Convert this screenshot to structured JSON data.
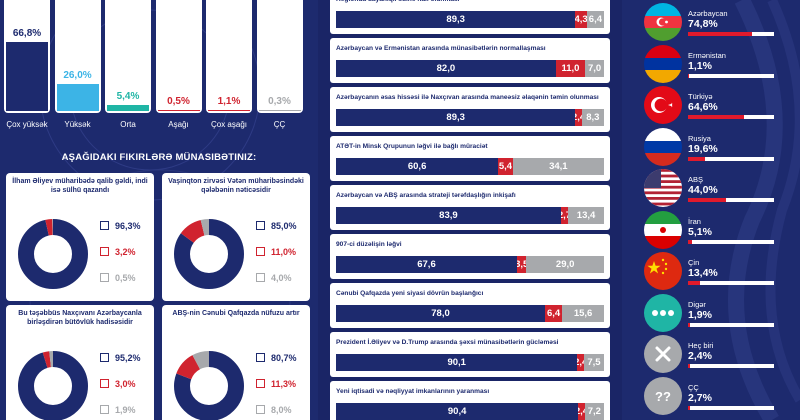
{
  "colors": {
    "navy": "#1d2a6e",
    "cyan": "#3cb4e6",
    "teal": "#1fb5a5",
    "red": "#d0232f",
    "gray": "#a7a9ac",
    "bar": "#e11a2c"
  },
  "chart_data": [
    {
      "type": "bar",
      "categories": [
        "Çox yüksək",
        "Yüksək",
        "Orta",
        "Aşağı",
        "Çox aşağı",
        "ÇÇ"
      ],
      "values": [
        66.8,
        26.0,
        5.4,
        0.5,
        1.1,
        0.3
      ],
      "value_labels": [
        "66,8%",
        "26,0%",
        "5,4%",
        "0,5%",
        "1,1%",
        "0,3%"
      ],
      "ylim": [
        0,
        100
      ]
    },
    {
      "type": "pie",
      "title": "AŞAĞIDAKI FIKIRLƏRƏ MÜNASIBƏTINIZ:",
      "questions": [
        {
          "title": "İlham Əliyev müharibədə qalib gəldi, indi isə sülhü qazandı",
          "values": [
            96.3,
            3.2,
            0.5
          ],
          "labels": [
            "96,3%",
            "3,2%",
            "0,5%"
          ]
        },
        {
          "title": "Vaşinqton zirvəsi Vətən müharibəsindəki qələbənin nəticəsidir",
          "values": [
            85.0,
            11.0,
            4.0
          ],
          "labels": [
            "85,0%",
            "11,0%",
            "4,0%"
          ]
        },
        {
          "title": "Bu təşəbbüs Naxçıvanı Azərbaycanla birləşdirən bütövlük hadisəsidir",
          "values": [
            95.2,
            3.0,
            1.9
          ],
          "labels": [
            "95,2%",
            "3,0%",
            "1,9%"
          ]
        },
        {
          "title": "ABŞ-nin Cənubi Qafqazda nüfuzu artır",
          "values": [
            80.7,
            11.3,
            8.0
          ],
          "labels": [
            "80,7%",
            "11,3%",
            "8,0%"
          ]
        }
      ]
    },
    {
      "type": "bar",
      "stacked": true,
      "rows": [
        {
          "title": "Regionda dayanıqlı sülhə nail olunması",
          "values": [
            89.3,
            4.3,
            6.4
          ],
          "labels": [
            "89,3",
            "4,3",
            "6,4"
          ]
        },
        {
          "title": "Azərbaycan və Ermənistan arasında münasibətlərin normallaşması",
          "values": [
            82.0,
            11.0,
            7.0
          ],
          "labels": [
            "82,0",
            "11,0",
            "7,0"
          ]
        },
        {
          "title": "Azərbaycanın əsas hissəsi ilə Naxçıvan arasında maneəsiz əlaqənin təmin olunması",
          "values": [
            89.3,
            2.4,
            8.3
          ],
          "labels": [
            "89,3",
            "2,4",
            "8,3"
          ]
        },
        {
          "title": "ATƏT-in Minsk Qrupunun ləğvi ilə bağlı müraciət",
          "values": [
            60.6,
            5.4,
            34.1
          ],
          "labels": [
            "60,6",
            "5,4",
            "34,1"
          ]
        },
        {
          "title": "Azərbaycan və ABŞ arasında strateji tərəfdaşlığın inkişafı",
          "values": [
            83.9,
            2.7,
            13.4
          ],
          "labels": [
            "83,9",
            "2,7",
            "13,4"
          ]
        },
        {
          "title": "907-ci düzəlişin ləğvi",
          "values": [
            67.6,
            3.5,
            29.0
          ],
          "labels": [
            "67,6",
            "3,5",
            "29,0"
          ]
        },
        {
          "title": "Cənubi Qafqazda yeni siyasi dövrün başlanğıcı",
          "values": [
            78.0,
            6.4,
            15.6
          ],
          "labels": [
            "78,0",
            "6,4",
            "15,6"
          ]
        },
        {
          "title": "Prezident İ.Əliyev və D.Trump arasında şəxsi münasibətlərin gücləməsi",
          "values": [
            90.1,
            2.4,
            7.5
          ],
          "labels": [
            "90,1",
            "2,4",
            "7,5"
          ]
        },
        {
          "title": "Yeni iqtisadi və nəqliyyat imkanlarının yaranması",
          "values": [
            90.4,
            2.4,
            7.2
          ],
          "labels": [
            "90,4",
            "2,4",
            "7,2"
          ]
        }
      ]
    },
    {
      "type": "bar",
      "categories": [
        "Azərbaycan",
        "Ermənistan",
        "Türkiyə",
        "Rusiya",
        "ABŞ",
        "İran",
        "Çin",
        "Digər",
        "Heç biri",
        "ÇÇ"
      ],
      "values": [
        74.8,
        1.1,
        64.6,
        19.6,
        44.0,
        5.1,
        13.4,
        1.9,
        2.4,
        2.7
      ],
      "value_labels": [
        "74,8%",
        "1,1%",
        "64,6%",
        "19,6%",
        "44,0%",
        "5,1%",
        "13,4%",
        "1,9%",
        "2,4%",
        "2,7%"
      ],
      "icons": [
        "azerbaijan-flag-icon",
        "armenia-flag-icon",
        "turkey-flag-icon",
        "russia-flag-icon",
        "usa-flag-icon",
        "iran-flag-icon",
        "china-flag-icon",
        "dots-icon",
        "cross-icon",
        "question-icon"
      ]
    }
  ]
}
